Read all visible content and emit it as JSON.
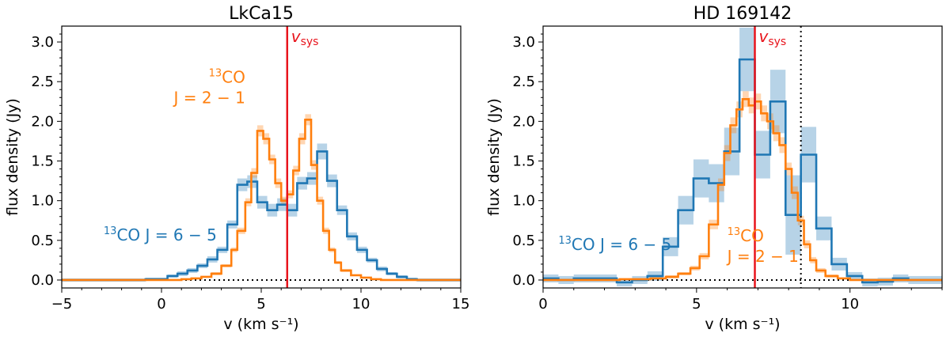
{
  "chart_data": [
    {
      "type": "line",
      "title": "LkCa15",
      "xlabel": "v (km s⁻¹)",
      "ylabel": "flux density (Jy)",
      "xlim": [
        -5,
        15
      ],
      "ylim": [
        -0.1,
        3.2
      ],
      "xticks": [
        -5,
        0,
        5,
        10,
        15
      ],
      "yticks": [
        0.0,
        0.5,
        1.0,
        1.5,
        2.0,
        2.5,
        3.0
      ],
      "xtick_labels": [
        "−5",
        "0",
        "5",
        "10",
        "15"
      ],
      "ytick_labels": [
        "0.0",
        "0.5",
        "1.0",
        "1.5",
        "2.0",
        "2.5",
        "3.0"
      ],
      "vsys": 6.3,
      "vsys_label": "v",
      "vsys_sub": "sys",
      "zero_line": true,
      "annotations": [
        {
          "text_sup": "13",
          "text": "CO J = 6 − 5",
          "color": "#1f77b4",
          "x": -2.9,
          "y": 0.5,
          "anchor": "start"
        },
        {
          "text_sup": "13",
          "text": "CO",
          "line2": "J = 2 − 1",
          "color": "#ff7f0e",
          "x": 4.2,
          "y": 2.35,
          "anchor": "end"
        }
      ],
      "series": [
        {
          "color": "#1f77b4",
          "steps": [
            {
              "x0": -5.0,
              "x1": -0.8,
              "y": 0.0,
              "err": 0.02
            },
            {
              "x0": -0.8,
              "x1": 0.3,
              "y": 0.01,
              "err": 0.02
            },
            {
              "x0": 0.3,
              "x1": 0.8,
              "y": 0.05,
              "err": 0.02
            },
            {
              "x0": 0.8,
              "x1": 1.3,
              "y": 0.08,
              "err": 0.03
            },
            {
              "x0": 1.3,
              "x1": 1.8,
              "y": 0.12,
              "err": 0.03
            },
            {
              "x0": 1.8,
              "x1": 2.3,
              "y": 0.18,
              "err": 0.03
            },
            {
              "x0": 2.3,
              "x1": 2.8,
              "y": 0.26,
              "err": 0.04
            },
            {
              "x0": 2.8,
              "x1": 3.3,
              "y": 0.38,
              "err": 0.04
            },
            {
              "x0": 3.3,
              "x1": 3.8,
              "y": 0.7,
              "err": 0.05
            },
            {
              "x0": 3.8,
              "x1": 4.3,
              "y": 1.2,
              "err": 0.08
            },
            {
              "x0": 4.3,
              "x1": 4.8,
              "y": 1.24,
              "err": 0.08
            },
            {
              "x0": 4.8,
              "x1": 5.3,
              "y": 0.98,
              "err": 0.08
            },
            {
              "x0": 5.3,
              "x1": 5.8,
              "y": 0.88,
              "err": 0.08
            },
            {
              "x0": 5.8,
              "x1": 6.3,
              "y": 0.95,
              "err": 0.08
            },
            {
              "x0": 6.3,
              "x1": 6.8,
              "y": 0.88,
              "err": 0.08
            },
            {
              "x0": 6.8,
              "x1": 7.3,
              "y": 1.22,
              "err": 0.08
            },
            {
              "x0": 7.3,
              "x1": 7.8,
              "y": 1.28,
              "err": 0.08
            },
            {
              "x0": 7.8,
              "x1": 8.3,
              "y": 1.62,
              "err": 0.1
            },
            {
              "x0": 8.3,
              "x1": 8.8,
              "y": 1.25,
              "err": 0.08
            },
            {
              "x0": 8.8,
              "x1": 9.3,
              "y": 0.88,
              "err": 0.06
            },
            {
              "x0": 9.3,
              "x1": 9.8,
              "y": 0.55,
              "err": 0.05
            },
            {
              "x0": 9.8,
              "x1": 10.3,
              "y": 0.38,
              "err": 0.04
            },
            {
              "x0": 10.3,
              "x1": 10.8,
              "y": 0.25,
              "err": 0.03
            },
            {
              "x0": 10.8,
              "x1": 11.3,
              "y": 0.14,
              "err": 0.03
            },
            {
              "x0": 11.3,
              "x1": 11.8,
              "y": 0.08,
              "err": 0.02
            },
            {
              "x0": 11.8,
              "x1": 12.3,
              "y": 0.04,
              "err": 0.02
            },
            {
              "x0": 12.3,
              "x1": 12.8,
              "y": 0.01,
              "err": 0.02
            },
            {
              "x0": 12.8,
              "x1": 15.0,
              "y": 0.0,
              "err": 0.02
            }
          ]
        },
        {
          "color": "#ff7f0e",
          "steps": [
            {
              "x0": -5.0,
              "x1": 1.0,
              "y": 0.0,
              "err": 0.01
            },
            {
              "x0": 1.0,
              "x1": 1.5,
              "y": 0.01,
              "err": 0.01
            },
            {
              "x0": 1.5,
              "x1": 2.0,
              "y": 0.02,
              "err": 0.01
            },
            {
              "x0": 2.0,
              "x1": 2.5,
              "y": 0.04,
              "err": 0.01
            },
            {
              "x0": 2.5,
              "x1": 3.0,
              "y": 0.08,
              "err": 0.02
            },
            {
              "x0": 3.0,
              "x1": 3.5,
              "y": 0.18,
              "err": 0.02
            },
            {
              "x0": 3.5,
              "x1": 3.8,
              "y": 0.38,
              "err": 0.03
            },
            {
              "x0": 3.8,
              "x1": 4.2,
              "y": 0.62,
              "err": 0.04
            },
            {
              "x0": 4.2,
              "x1": 4.5,
              "y": 0.98,
              "err": 0.05
            },
            {
              "x0": 4.5,
              "x1": 4.8,
              "y": 1.35,
              "err": 0.06
            },
            {
              "x0": 4.8,
              "x1": 5.1,
              "y": 1.88,
              "err": 0.07
            },
            {
              "x0": 5.1,
              "x1": 5.4,
              "y": 1.78,
              "err": 0.07
            },
            {
              "x0": 5.4,
              "x1": 5.7,
              "y": 1.52,
              "err": 0.06
            },
            {
              "x0": 5.7,
              "x1": 6.0,
              "y": 1.22,
              "err": 0.06
            },
            {
              "x0": 6.0,
              "x1": 6.3,
              "y": 1.0,
              "err": 0.05
            },
            {
              "x0": 6.3,
              "x1": 6.6,
              "y": 1.08,
              "err": 0.05
            },
            {
              "x0": 6.6,
              "x1": 6.9,
              "y": 1.38,
              "err": 0.06
            },
            {
              "x0": 6.9,
              "x1": 7.2,
              "y": 1.78,
              "err": 0.07
            },
            {
              "x0": 7.2,
              "x1": 7.5,
              "y": 2.02,
              "err": 0.07
            },
            {
              "x0": 7.5,
              "x1": 7.8,
              "y": 1.45,
              "err": 0.06
            },
            {
              "x0": 7.8,
              "x1": 8.1,
              "y": 1.0,
              "err": 0.05
            },
            {
              "x0": 8.1,
              "x1": 8.4,
              "y": 0.62,
              "err": 0.04
            },
            {
              "x0": 8.4,
              "x1": 8.7,
              "y": 0.38,
              "err": 0.03
            },
            {
              "x0": 8.7,
              "x1": 9.0,
              "y": 0.22,
              "err": 0.02
            },
            {
              "x0": 9.0,
              "x1": 9.5,
              "y": 0.12,
              "err": 0.02
            },
            {
              "x0": 9.5,
              "x1": 10.0,
              "y": 0.06,
              "err": 0.01
            },
            {
              "x0": 10.0,
              "x1": 10.5,
              "y": 0.03,
              "err": 0.01
            },
            {
              "x0": 10.5,
              "x1": 11.0,
              "y": 0.01,
              "err": 0.01
            },
            {
              "x0": 11.0,
              "x1": 15.0,
              "y": 0.0,
              "err": 0.01
            }
          ]
        }
      ]
    },
    {
      "type": "line",
      "title": "HD 169142",
      "xlabel": "v (km s⁻¹)",
      "ylabel": "flux density (Jy)",
      "xlim": [
        0,
        13
      ],
      "ylim": [
        -0.1,
        3.2
      ],
      "xticks": [
        0,
        5,
        10
      ],
      "yticks": [
        0.0,
        0.5,
        1.0,
        1.5,
        2.0,
        2.5,
        3.0
      ],
      "xtick_labels": [
        "0",
        "5",
        "10"
      ],
      "ytick_labels": [
        "0.0",
        "0.5",
        "1.0",
        "1.5",
        "2.0",
        "2.5",
        "3.0"
      ],
      "vsys": 6.9,
      "vsys_label": "v",
      "vsys_sub": "sys",
      "dotted_vline": 8.4,
      "zero_line": true,
      "annotations": [
        {
          "text_sup": "13",
          "text": "CO J = 6 − 5",
          "color": "#1f77b4",
          "x": 0.5,
          "y": 0.38,
          "anchor": "start"
        },
        {
          "text_sup": "13",
          "text": "CO",
          "line2": "J = 2 − 1",
          "color": "#ff7f0e",
          "x": 6.0,
          "y": 0.35,
          "anchor": "start"
        }
      ],
      "series": [
        {
          "color": "#1f77b4",
          "steps": [
            {
              "x0": 0.0,
              "x1": 0.5,
              "y": 0.02,
              "err": 0.05
            },
            {
              "x0": 0.5,
              "x1": 1.0,
              "y": 0.0,
              "err": 0.05
            },
            {
              "x0": 1.0,
              "x1": 2.4,
              "y": 0.02,
              "err": 0.05
            },
            {
              "x0": 2.4,
              "x1": 2.9,
              "y": -0.03,
              "err": 0.05
            },
            {
              "x0": 2.9,
              "x1": 3.4,
              "y": 0.0,
              "err": 0.05
            },
            {
              "x0": 3.4,
              "x1": 3.9,
              "y": 0.05,
              "err": 0.06
            },
            {
              "x0": 3.9,
              "x1": 4.4,
              "y": 0.42,
              "err": 0.12
            },
            {
              "x0": 4.4,
              "x1": 4.9,
              "y": 0.88,
              "err": 0.18
            },
            {
              "x0": 4.9,
              "x1": 5.4,
              "y": 1.28,
              "err": 0.24
            },
            {
              "x0": 5.4,
              "x1": 5.9,
              "y": 1.22,
              "err": 0.24
            },
            {
              "x0": 5.9,
              "x1": 6.4,
              "y": 1.62,
              "err": 0.3
            },
            {
              "x0": 6.4,
              "x1": 6.9,
              "y": 2.78,
              "err": 0.4
            },
            {
              "x0": 6.9,
              "x1": 7.4,
              "y": 1.58,
              "err": 0.3
            },
            {
              "x0": 7.4,
              "x1": 7.9,
              "y": 2.25,
              "err": 0.4
            },
            {
              "x0": 7.9,
              "x1": 8.4,
              "y": 0.82,
              "err": 0.5
            },
            {
              "x0": 8.4,
              "x1": 8.9,
              "y": 1.58,
              "err": 0.35
            },
            {
              "x0": 8.9,
              "x1": 9.4,
              "y": 0.65,
              "err": 0.15
            },
            {
              "x0": 9.4,
              "x1": 9.9,
              "y": 0.2,
              "err": 0.08
            },
            {
              "x0": 9.9,
              "x1": 10.4,
              "y": 0.05,
              "err": 0.05
            },
            {
              "x0": 10.4,
              "x1": 10.9,
              "y": -0.03,
              "err": 0.05
            },
            {
              "x0": 10.9,
              "x1": 11.4,
              "y": -0.02,
              "err": 0.05
            },
            {
              "x0": 11.4,
              "x1": 11.9,
              "y": 0.02,
              "err": 0.05
            },
            {
              "x0": 11.9,
              "x1": 13.0,
              "y": 0.0,
              "err": 0.05
            }
          ]
        },
        {
          "color": "#ff7f0e",
          "steps": [
            {
              "x0": 0.0,
              "x1": 2.5,
              "y": 0.0,
              "err": 0.01
            },
            {
              "x0": 2.5,
              "x1": 3.5,
              "y": 0.01,
              "err": 0.01
            },
            {
              "x0": 3.5,
              "x1": 4.0,
              "y": 0.02,
              "err": 0.01
            },
            {
              "x0": 4.0,
              "x1": 4.4,
              "y": 0.04,
              "err": 0.02
            },
            {
              "x0": 4.4,
              "x1": 4.8,
              "y": 0.08,
              "err": 0.02
            },
            {
              "x0": 4.8,
              "x1": 5.1,
              "y": 0.15,
              "err": 0.03
            },
            {
              "x0": 5.1,
              "x1": 5.4,
              "y": 0.3,
              "err": 0.04
            },
            {
              "x0": 5.4,
              "x1": 5.7,
              "y": 0.7,
              "err": 0.06
            },
            {
              "x0": 5.7,
              "x1": 5.9,
              "y": 1.2,
              "err": 0.08
            },
            {
              "x0": 5.9,
              "x1": 6.1,
              "y": 1.6,
              "err": 0.1
            },
            {
              "x0": 6.1,
              "x1": 6.3,
              "y": 1.95,
              "err": 0.1
            },
            {
              "x0": 6.3,
              "x1": 6.5,
              "y": 2.15,
              "err": 0.1
            },
            {
              "x0": 6.5,
              "x1": 6.7,
              "y": 2.28,
              "err": 0.1
            },
            {
              "x0": 6.7,
              "x1": 6.9,
              "y": 2.2,
              "err": 0.1
            },
            {
              "x0": 6.9,
              "x1": 7.1,
              "y": 2.25,
              "err": 0.1
            },
            {
              "x0": 7.1,
              "x1": 7.3,
              "y": 2.1,
              "err": 0.1
            },
            {
              "x0": 7.3,
              "x1": 7.5,
              "y": 2.0,
              "err": 0.1
            },
            {
              "x0": 7.5,
              "x1": 7.7,
              "y": 1.85,
              "err": 0.1
            },
            {
              "x0": 7.7,
              "x1": 7.9,
              "y": 1.7,
              "err": 0.1
            },
            {
              "x0": 7.9,
              "x1": 8.1,
              "y": 1.4,
              "err": 0.08
            },
            {
              "x0": 8.1,
              "x1": 8.3,
              "y": 1.1,
              "err": 0.08
            },
            {
              "x0": 8.3,
              "x1": 8.5,
              "y": 0.75,
              "err": 0.06
            },
            {
              "x0": 8.5,
              "x1": 8.7,
              "y": 0.45,
              "err": 0.05
            },
            {
              "x0": 8.7,
              "x1": 8.9,
              "y": 0.25,
              "err": 0.04
            },
            {
              "x0": 8.9,
              "x1": 9.2,
              "y": 0.12,
              "err": 0.03
            },
            {
              "x0": 9.2,
              "x1": 9.6,
              "y": 0.05,
              "err": 0.02
            },
            {
              "x0": 9.6,
              "x1": 10.0,
              "y": 0.02,
              "err": 0.01
            },
            {
              "x0": 10.0,
              "x1": 13.0,
              "y": 0.0,
              "err": 0.01
            }
          ]
        }
      ]
    }
  ]
}
